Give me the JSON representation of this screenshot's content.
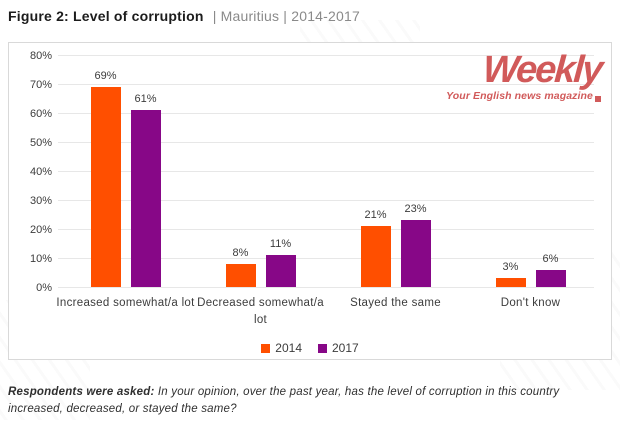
{
  "title": {
    "figure": "Figure 2: Level of corruption",
    "context": "| Mauritius | 2014-2017"
  },
  "logo": {
    "name": "Weekly",
    "tagline": "Your English news magazine",
    "color": "#d15a5a"
  },
  "footnote": {
    "lead": "Respondents were asked:",
    "text": " In your opinion, over the past year, has the level of corruption in this country increased, decreased, or stayed the same?"
  },
  "chart_data": {
    "type": "bar",
    "title": "Level of corruption, Mauritius, 2014-2017",
    "categories": [
      "Increased somewhat/a lot",
      "Decreased somewhat/a lot",
      "Stayed the same",
      "Don't know"
    ],
    "series": [
      {
        "name": "2014",
        "color": "#FF4F00",
        "values": [
          69,
          8,
          21,
          3
        ]
      },
      {
        "name": "2017",
        "color": "#870787",
        "values": [
          61,
          11,
          23,
          6
        ]
      }
    ],
    "xlabel": "",
    "ylabel": "",
    "ylim": [
      0,
      80
    ],
    "ytick_step": 10,
    "tick_suffix": "%",
    "value_label_suffix": "%",
    "grid": true,
    "legend_position": "bottom",
    "gridline_color": "#e7e7e7"
  }
}
